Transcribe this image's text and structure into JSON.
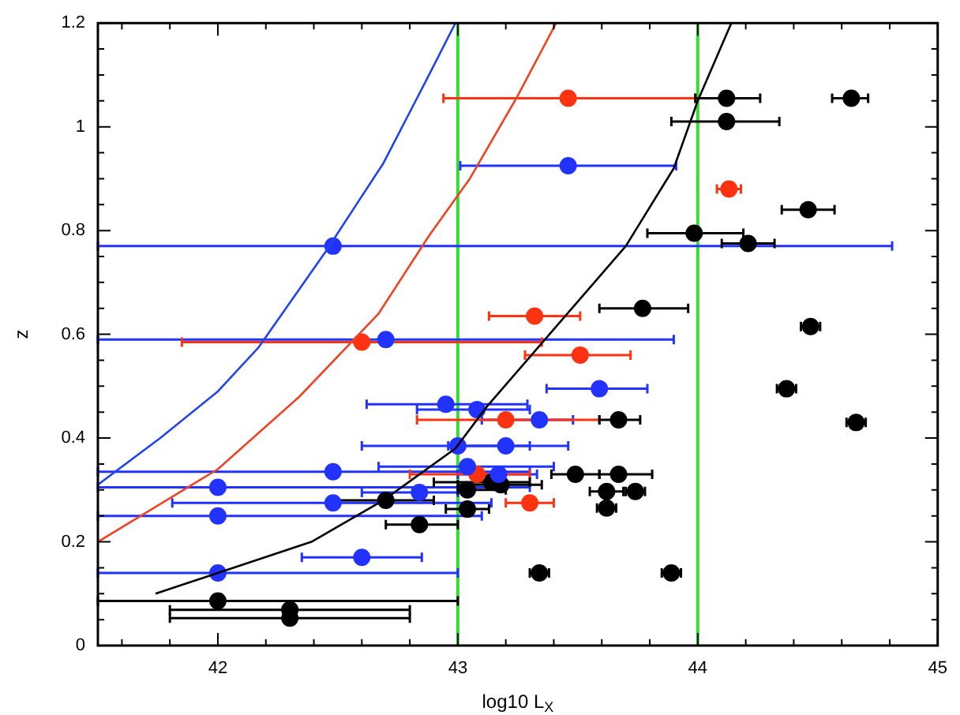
{
  "chart_data": {
    "type": "scatter",
    "xlabel": "log10 L$_{X}$",
    "ylabel": "z",
    "xlim": [
      41.5,
      45
    ],
    "ylim": [
      0,
      1.2
    ],
    "xticks": [
      {
        "value": 41.6,
        "label": null
      },
      {
        "value": 41.8,
        "label": null
      },
      42,
      {
        "value": 42.2,
        "label": null
      },
      {
        "value": 42.4,
        "label": null
      },
      {
        "value": 42.6,
        "label": null
      },
      {
        "value": 42.8,
        "label": null
      },
      43,
      {
        "value": 43.2,
        "label": null
      },
      {
        "value": 43.4,
        "label": null
      },
      {
        "value": 43.6,
        "label": null
      },
      {
        "value": 43.8,
        "label": null
      },
      44,
      {
        "value": 44.2,
        "label": null
      },
      {
        "value": 44.4,
        "label": null
      },
      {
        "value": 44.6,
        "label": null
      },
      {
        "value": 44.8,
        "label": null
      },
      45
    ],
    "yticks": [
      0,
      {
        "value": 0.05,
        "label": null
      },
      {
        "value": 0.1,
        "label": null
      },
      {
        "value": 0.15,
        "label": null
      },
      0.2,
      {
        "value": 0.25,
        "label": null
      },
      {
        "value": 0.3,
        "label": null
      },
      {
        "value": 0.35,
        "label": null
      },
      0.4,
      {
        "value": 0.45,
        "label": null
      },
      {
        "value": 0.5,
        "label": null
      },
      {
        "value": 0.55,
        "label": null
      },
      0.6,
      {
        "value": 0.65,
        "label": null
      },
      {
        "value": 0.7,
        "label": null
      },
      {
        "value": 0.75,
        "label": null
      },
      0.8,
      {
        "value": 0.85,
        "label": null
      },
      {
        "value": 0.9,
        "label": null
      },
      {
        "value": 0.95,
        "label": null
      },
      1,
      {
        "value": 1.05,
        "label": null
      },
      {
        "value": 1.1,
        "label": null
      },
      {
        "value": 1.15,
        "label": null
      },
      1.2
    ],
    "grid": false,
    "legend": false,
    "marker": "circle",
    "ref_lines": [
      {
        "axis": "x",
        "value": 43,
        "color": "#33dd33"
      },
      {
        "axis": "x",
        "value": 44,
        "color": "#33dd33"
      }
    ],
    "series": [
      {
        "type": "line",
        "color": "#2244ee",
        "x": [
          41.5,
          41.76,
          42.0,
          42.17,
          42.45,
          42.69,
          42.88,
          42.99
        ],
        "values": [
          0.31,
          0.4,
          0.49,
          0.575,
          0.76,
          0.93,
          1.1,
          1.2
        ],
        "marker": "none"
      },
      {
        "type": "line",
        "color": "#ee4422",
        "x": [
          41.5,
          42.0,
          42.34,
          42.67,
          42.88,
          43.05,
          43.25,
          43.41
        ],
        "values": [
          0.2,
          0.34,
          0.48,
          0.64,
          0.79,
          0.9,
          1.06,
          1.2
        ],
        "marker": "none"
      },
      {
        "type": "line",
        "color": "#000000",
        "x": [
          41.74,
          42.0,
          42.39,
          42.69,
          42.99,
          43.12,
          43.7,
          43.9,
          44.0,
          44.14
        ],
        "values": [
          0.1,
          0.14,
          0.2,
          0.28,
          0.38,
          0.46,
          0.77,
          0.92,
          1.05,
          1.2
        ],
        "marker": "none"
      },
      {
        "color": "#2233ff",
        "x": [
          43.46,
          42.48,
          42.7,
          43.59,
          42.95,
          43.08,
          43.34,
          43.0,
          43.2,
          42.48,
          43.04,
          43.17,
          42.0,
          42.84,
          42.48,
          42.0,
          42.6,
          42.0
        ],
        "values": [
          0.925,
          0.77,
          0.59,
          0.495,
          0.465,
          0.455,
          0.435,
          0.385,
          0.385,
          0.335,
          0.345,
          0.33,
          0.305,
          0.295,
          0.275,
          0.25,
          0.17,
          0.14
        ],
        "xerrors": [
          [
            43.01,
            43.91
          ],
          [
            41.5,
            44.81
          ],
          [
            41.5,
            43.9
          ],
          [
            43.37,
            43.79
          ],
          [
            42.62,
            43.29
          ],
          [
            42.83,
            43.3
          ],
          [
            43.1,
            43.48
          ],
          [
            42.6,
            43.3
          ],
          [
            42.96,
            43.46
          ],
          [
            41.5,
            43.3
          ],
          [
            42.67,
            43.4
          ],
          [
            43.0,
            43.33
          ],
          [
            41.5,
            43.3
          ],
          [
            42.6,
            43.0
          ],
          [
            41.81,
            43.14
          ],
          [
            41.5,
            43.1
          ],
          [
            42.35,
            42.85
          ],
          [
            41.5,
            43.0
          ]
        ]
      },
      {
        "color": "#ff3311",
        "x": [
          43.46,
          44.13,
          43.32,
          42.6,
          43.51,
          43.2,
          43.08,
          43.3
        ],
        "values": [
          1.055,
          0.88,
          0.635,
          0.585,
          0.56,
          0.435,
          0.33,
          0.275
        ],
        "xerrors": [
          [
            42.94,
            43.99
          ],
          0.05,
          [
            43.13,
            43.51
          ],
          [
            41.85,
            43.35
          ],
          [
            43.28,
            43.72
          ],
          [
            42.83,
            43.59
          ],
          [
            42.8,
            43.3
          ],
          [
            43.2,
            43.4
          ]
        ]
      },
      {
        "color": "#000000",
        "x": [
          44.12,
          44.64,
          44.12,
          44.46,
          43.985,
          44.21,
          43.77,
          44.47,
          44.37,
          44.66,
          43.67,
          43.49,
          43.67,
          43.62,
          43.74,
          43.62,
          43.34,
          43.89,
          43.14,
          43.18,
          43.04,
          43.04,
          42.7,
          42.84,
          42.0,
          42.3,
          42.3
        ],
        "values": [
          1.055,
          1.055,
          1.01,
          0.84,
          0.795,
          0.775,
          0.65,
          0.615,
          0.495,
          0.43,
          0.435,
          0.33,
          0.33,
          0.297,
          0.297,
          0.265,
          0.14,
          0.14,
          0.315,
          0.31,
          0.3,
          0.263,
          0.28,
          0.233,
          0.086,
          0.069,
          0.053
        ],
        "xerrors": [
          [
            43.99,
            44.26
          ],
          [
            44.56,
            44.71
          ],
          [
            43.89,
            44.34
          ],
          [
            44.35,
            44.57
          ],
          [
            43.79,
            44.19
          ],
          [
            44.1,
            44.32
          ],
          [
            43.59,
            43.96
          ],
          0.04,
          0.04,
          0.04,
          [
            43.59,
            43.76
          ],
          [
            43.39,
            43.59
          ],
          [
            43.59,
            43.81
          ],
          [
            43.55,
            43.69
          ],
          0.04,
          0.04,
          0.04,
          0.04,
          [
            42.9,
            43.3
          ],
          [
            43.0,
            43.35
          ],
          [
            43.0,
            43.2
          ],
          [
            42.95,
            43.13
          ],
          [
            42.49,
            42.9
          ],
          [
            42.7,
            43.0
          ],
          [
            41.5,
            43.0
          ],
          [
            41.8,
            42.8
          ],
          [
            41.8,
            42.8
          ]
        ]
      }
    ]
  }
}
